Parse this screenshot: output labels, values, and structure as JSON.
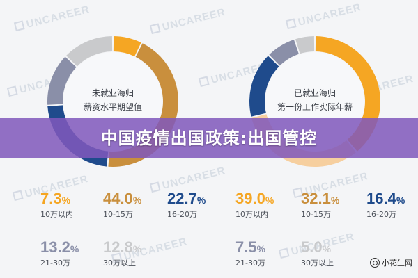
{
  "banner": {
    "title": "中国疫情出国政策:出国管控"
  },
  "watermark": {
    "text": "UNCAREER"
  },
  "badge": {
    "text": "小花生网",
    "icon": "wechat-icon"
  },
  "colors": {
    "orange": "#f5a623",
    "gold": "#c98f3d",
    "slate": "#8a8fa8",
    "navy": "#1f4b8c",
    "lightgray": "#c9cacc",
    "paleorange": "#f6cf9f"
  },
  "chart_data": [
    {
      "type": "pie",
      "center_label_lines": [
        "未就业海归",
        "薪资水平期望值"
      ],
      "categories": [
        "10万以内",
        "10-15万",
        "16-20万",
        "21-30万",
        "30万以上"
      ],
      "values": [
        7.3,
        44.0,
        22.7,
        13.2,
        12.8
      ],
      "display_values": [
        "7.3",
        "44.0",
        "22.7",
        "13.2",
        "12.8"
      ],
      "value_suffix": "%",
      "colors": [
        "#f5a623",
        "#c98f3d",
        "#1f4b8c",
        "#8a8fa8",
        "#c9cacc"
      ],
      "label_colors": [
        "#f5a623",
        "#c98f3d",
        "#1f4b8c",
        "#8a8fa8",
        "#c9cacc"
      ]
    },
    {
      "type": "pie",
      "center_label_lines": [
        "已就业海归",
        "第一份工作实际年薪"
      ],
      "categories": [
        "10万以内",
        "10-15万",
        "16-20万",
        "21-30万",
        "30万以上"
      ],
      "values": [
        39.0,
        32.1,
        16.4,
        7.5,
        5.0
      ],
      "display_values": [
        "39.0",
        "32.1",
        "16.4",
        "7.5",
        "5.0"
      ],
      "value_suffix": "%",
      "colors": [
        "#f5a623",
        "#f6cf9f",
        "#1f4b8c",
        "#8a8fa8",
        "#c9cacc"
      ],
      "label_colors": [
        "#f5a623",
        "#c98f3d",
        "#1f4b8c",
        "#8a8fa8",
        "#c9cacc"
      ]
    }
  ]
}
